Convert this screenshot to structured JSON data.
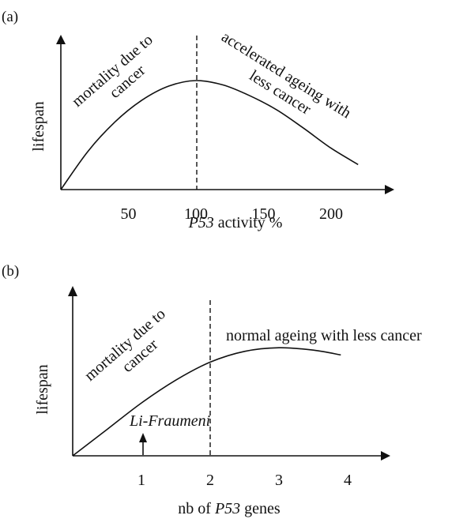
{
  "chart_data": [
    {
      "type": "line",
      "panel_label": "(a)",
      "ylabel": "lifespan",
      "xlabel_italic": "P53",
      "xlabel_rest": " activity %",
      "x_ticks": [
        50,
        100,
        150,
        200
      ],
      "xlim": [
        0,
        225
      ],
      "reference_line_x": 100,
      "series": [
        {
          "x": [
            0,
            20,
            40,
            60,
            80,
            100,
            120,
            140,
            160,
            180,
            200,
            220
          ],
          "y": [
            0.0,
            0.35,
            0.62,
            0.82,
            0.95,
            1.0,
            0.96,
            0.86,
            0.73,
            0.56,
            0.38,
            0.23
          ]
        }
      ],
      "annotations": [
        {
          "lines": [
            "mortality due to",
            "cancer"
          ]
        },
        {
          "lines": [
            "accelerated ageing with",
            "less cancer"
          ]
        }
      ]
    },
    {
      "type": "line",
      "panel_label": "(b)",
      "ylabel": "lifespan",
      "xlabel_prefix": "nb of ",
      "xlabel_italic": "P53",
      "xlabel_rest": " genes",
      "x_ticks": [
        1,
        2,
        3,
        4
      ],
      "xlim": [
        0,
        4.6
      ],
      "reference_line_x": 2,
      "series": [
        {
          "x": [
            0,
            0.5,
            1,
            1.5,
            2,
            2.5,
            3,
            3.5,
            3.9
          ],
          "y": [
            0.0,
            0.22,
            0.44,
            0.63,
            0.78,
            0.87,
            0.9,
            0.88,
            0.84
          ]
        }
      ],
      "annotations": [
        {
          "lines": [
            "mortality due to",
            "cancer"
          ]
        },
        {
          "lines": [
            "normal ageing with less cancer"
          ]
        },
        {
          "lines": [
            "Li-Fraumeni"
          ],
          "arrow_at_x": 1
        }
      ]
    }
  ]
}
